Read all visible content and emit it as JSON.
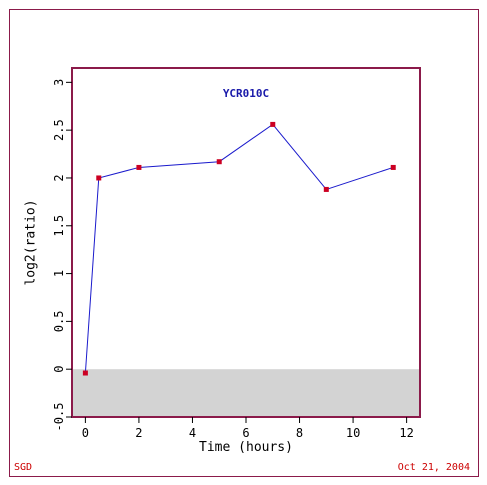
{
  "footer": {
    "left": "SGD",
    "right": "Oct 21, 2004"
  },
  "colors": {
    "frame": "#8b1a4a",
    "plot_border": "#8b1a4a",
    "line": "#1a1acc",
    "marker": "#cc0022",
    "title": "#1a1aaa",
    "footer": "#cc0000",
    "negative_band": "#d3d3d3"
  },
  "chart_data": {
    "type": "line",
    "title": "YCR010C",
    "xlabel": "Time (hours)",
    "ylabel": "log2(ratio)",
    "xlim": [
      -0.5,
      12.5
    ],
    "ylim": [
      -0.5,
      3.15
    ],
    "xticks": [
      0,
      2,
      4,
      6,
      8,
      10,
      12
    ],
    "yticks": [
      -0.5,
      0,
      0.5,
      1,
      1.5,
      2,
      2.5,
      3
    ],
    "ytick_labels": [
      "-0.5",
      "0",
      "0.5",
      "1",
      "1.5",
      "2",
      "2.5",
      "3"
    ],
    "grid": false,
    "shaded_region": {
      "y_from": -0.5,
      "y_to": 0
    },
    "series": [
      {
        "x": [
          0,
          0.5,
          2,
          5,
          7,
          9,
          11.5
        ],
        "y": [
          -0.04,
          2.0,
          2.11,
          2.17,
          2.56,
          1.88,
          2.11
        ]
      }
    ]
  }
}
